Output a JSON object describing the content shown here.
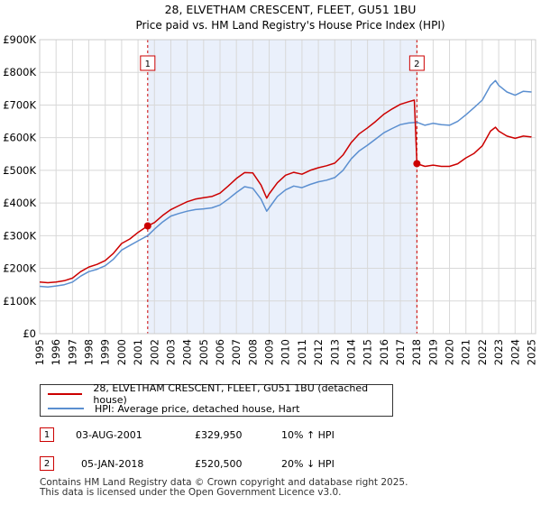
{
  "chart_data": {
    "type": "line",
    "title": "28, ELVETHAM CRESCENT, FLEET, GU51 1BU",
    "subtitle": "Price paid vs. HM Land Registry's House Price Index (HPI)",
    "xlim": [
      1995,
      2025.25
    ],
    "ylim": [
      0,
      900000
    ],
    "x_ticks": [
      "1995",
      "1996",
      "1997",
      "1998",
      "1999",
      "2000",
      "2001",
      "2002",
      "2003",
      "2004",
      "2005",
      "2006",
      "2007",
      "2008",
      "2009",
      "2010",
      "2011",
      "2012",
      "2013",
      "2014",
      "2015",
      "2016",
      "2017",
      "2018",
      "2019",
      "2020",
      "2021",
      "2022",
      "2023",
      "2024",
      "2025"
    ],
    "y_ticks": [
      {
        "value": 0,
        "label": "£0"
      },
      {
        "value": 100000,
        "label": "£100K"
      },
      {
        "value": 200000,
        "label": "£200K"
      },
      {
        "value": 300000,
        "label": "£300K"
      },
      {
        "value": 400000,
        "label": "£400K"
      },
      {
        "value": 500000,
        "label": "£500K"
      },
      {
        "value": 600000,
        "label": "£600K"
      },
      {
        "value": 700000,
        "label": "£700K"
      },
      {
        "value": 800000,
        "label": "£800K"
      },
      {
        "value": 900000,
        "label": "£900K"
      }
    ],
    "shaded_region": [
      2001.59,
      2018.01
    ],
    "series": [
      {
        "name": "28, ELVETHAM CRESCENT, FLEET, GU51 1BU (detached house)",
        "color": "#cc0000",
        "points": [
          [
            1995,
            158000
          ],
          [
            1995.5,
            156000
          ],
          [
            1996,
            158000
          ],
          [
            1996.5,
            162000
          ],
          [
            1997,
            170000
          ],
          [
            1997.5,
            190000
          ],
          [
            1998,
            204000
          ],
          [
            1998.5,
            212000
          ],
          [
            1999,
            224000
          ],
          [
            1999.5,
            246000
          ],
          [
            2000,
            276000
          ],
          [
            2000.5,
            290000
          ],
          [
            2001,
            310000
          ],
          [
            2001.59,
            329950
          ],
          [
            2002,
            340000
          ],
          [
            2002.5,
            362000
          ],
          [
            2003,
            380000
          ],
          [
            2003.5,
            392000
          ],
          [
            2004,
            404000
          ],
          [
            2004.5,
            412000
          ],
          [
            2005,
            416000
          ],
          [
            2005.5,
            420000
          ],
          [
            2006,
            430000
          ],
          [
            2006.5,
            452000
          ],
          [
            2007,
            475000
          ],
          [
            2007.5,
            493000
          ],
          [
            2008,
            492000
          ],
          [
            2008.5,
            455000
          ],
          [
            2008.85,
            415000
          ],
          [
            2009,
            428000
          ],
          [
            2009.5,
            462000
          ],
          [
            2010,
            485000
          ],
          [
            2010.5,
            494000
          ],
          [
            2011,
            488000
          ],
          [
            2011.5,
            500000
          ],
          [
            2012,
            508000
          ],
          [
            2012.5,
            514000
          ],
          [
            2013,
            522000
          ],
          [
            2013.5,
            547000
          ],
          [
            2014,
            585000
          ],
          [
            2014.5,
            612000
          ],
          [
            2015,
            630000
          ],
          [
            2015.5,
            650000
          ],
          [
            2016,
            672000
          ],
          [
            2016.5,
            688000
          ],
          [
            2017,
            702000
          ],
          [
            2017.5,
            710000
          ],
          [
            2017.85,
            715000
          ],
          [
            2018.01,
            520500
          ],
          [
            2018.5,
            512000
          ],
          [
            2019,
            516000
          ],
          [
            2019.5,
            512000
          ],
          [
            2020,
            512000
          ],
          [
            2020.5,
            520000
          ],
          [
            2021,
            538000
          ],
          [
            2021.5,
            552000
          ],
          [
            2022,
            575000
          ],
          [
            2022.5,
            620000
          ],
          [
            2022.8,
            632000
          ],
          [
            2023,
            620000
          ],
          [
            2023.5,
            605000
          ],
          [
            2024,
            598000
          ],
          [
            2024.5,
            605000
          ],
          [
            2025,
            602000
          ]
        ]
      },
      {
        "name": "HPI: Average price, detached house, Hart",
        "color": "#5b8fd0",
        "points": [
          [
            1995,
            145000
          ],
          [
            1995.5,
            143000
          ],
          [
            1996,
            146000
          ],
          [
            1996.5,
            150000
          ],
          [
            1997,
            158000
          ],
          [
            1997.5,
            176000
          ],
          [
            1998,
            190000
          ],
          [
            1998.5,
            197000
          ],
          [
            1999,
            208000
          ],
          [
            1999.5,
            228000
          ],
          [
            2000,
            256000
          ],
          [
            2000.5,
            270000
          ],
          [
            2001,
            284000
          ],
          [
            2001.59,
            300000
          ],
          [
            2002,
            320000
          ],
          [
            2002.5,
            342000
          ],
          [
            2003,
            360000
          ],
          [
            2003.5,
            368000
          ],
          [
            2004,
            375000
          ],
          [
            2004.5,
            380000
          ],
          [
            2005,
            382000
          ],
          [
            2005.5,
            385000
          ],
          [
            2006,
            394000
          ],
          [
            2006.5,
            412000
          ],
          [
            2007,
            432000
          ],
          [
            2007.5,
            450000
          ],
          [
            2008,
            445000
          ],
          [
            2008.5,
            412000
          ],
          [
            2008.85,
            375000
          ],
          [
            2009,
            385000
          ],
          [
            2009.5,
            420000
          ],
          [
            2010,
            440000
          ],
          [
            2010.5,
            452000
          ],
          [
            2011,
            447000
          ],
          [
            2011.5,
            457000
          ],
          [
            2012,
            465000
          ],
          [
            2012.5,
            470000
          ],
          [
            2013,
            478000
          ],
          [
            2013.5,
            500000
          ],
          [
            2014,
            535000
          ],
          [
            2014.5,
            560000
          ],
          [
            2015,
            577000
          ],
          [
            2015.5,
            596000
          ],
          [
            2016,
            615000
          ],
          [
            2016.5,
            628000
          ],
          [
            2017,
            640000
          ],
          [
            2017.5,
            645000
          ],
          [
            2018.01,
            647000
          ],
          [
            2018.5,
            638000
          ],
          [
            2019,
            644000
          ],
          [
            2019.5,
            640000
          ],
          [
            2020,
            638000
          ],
          [
            2020.5,
            650000
          ],
          [
            2021,
            670000
          ],
          [
            2021.5,
            692000
          ],
          [
            2022,
            715000
          ],
          [
            2022.5,
            760000
          ],
          [
            2022.8,
            775000
          ],
          [
            2023,
            760000
          ],
          [
            2023.5,
            740000
          ],
          [
            2024,
            730000
          ],
          [
            2024.5,
            742000
          ],
          [
            2025,
            740000
          ]
        ]
      }
    ],
    "transactions": [
      {
        "id": "1",
        "x": 2001.59,
        "price": 329950
      },
      {
        "id": "2",
        "x": 2018.01,
        "price": 520500
      }
    ]
  },
  "legend": {
    "items": [
      {
        "label": "28, ELVETHAM CRESCENT, FLEET, GU51 1BU (detached house)",
        "color": "#cc0000"
      },
      {
        "label": "HPI: Average price, detached house, Hart",
        "color": "#5b8fd0"
      }
    ]
  },
  "table": {
    "rows": [
      {
        "id": "1",
        "date": "03-AUG-2001",
        "price": "£329,950",
        "change": "10% ↑ HPI"
      },
      {
        "id": "2",
        "date": "05-JAN-2018",
        "price": "£520,500",
        "change": "20% ↓ HPI"
      }
    ]
  },
  "footer": {
    "line1": "Contains HM Land Registry data © Crown copyright and database right 2025.",
    "line2": "This data is licensed under the Open Government Licence v3.0."
  }
}
